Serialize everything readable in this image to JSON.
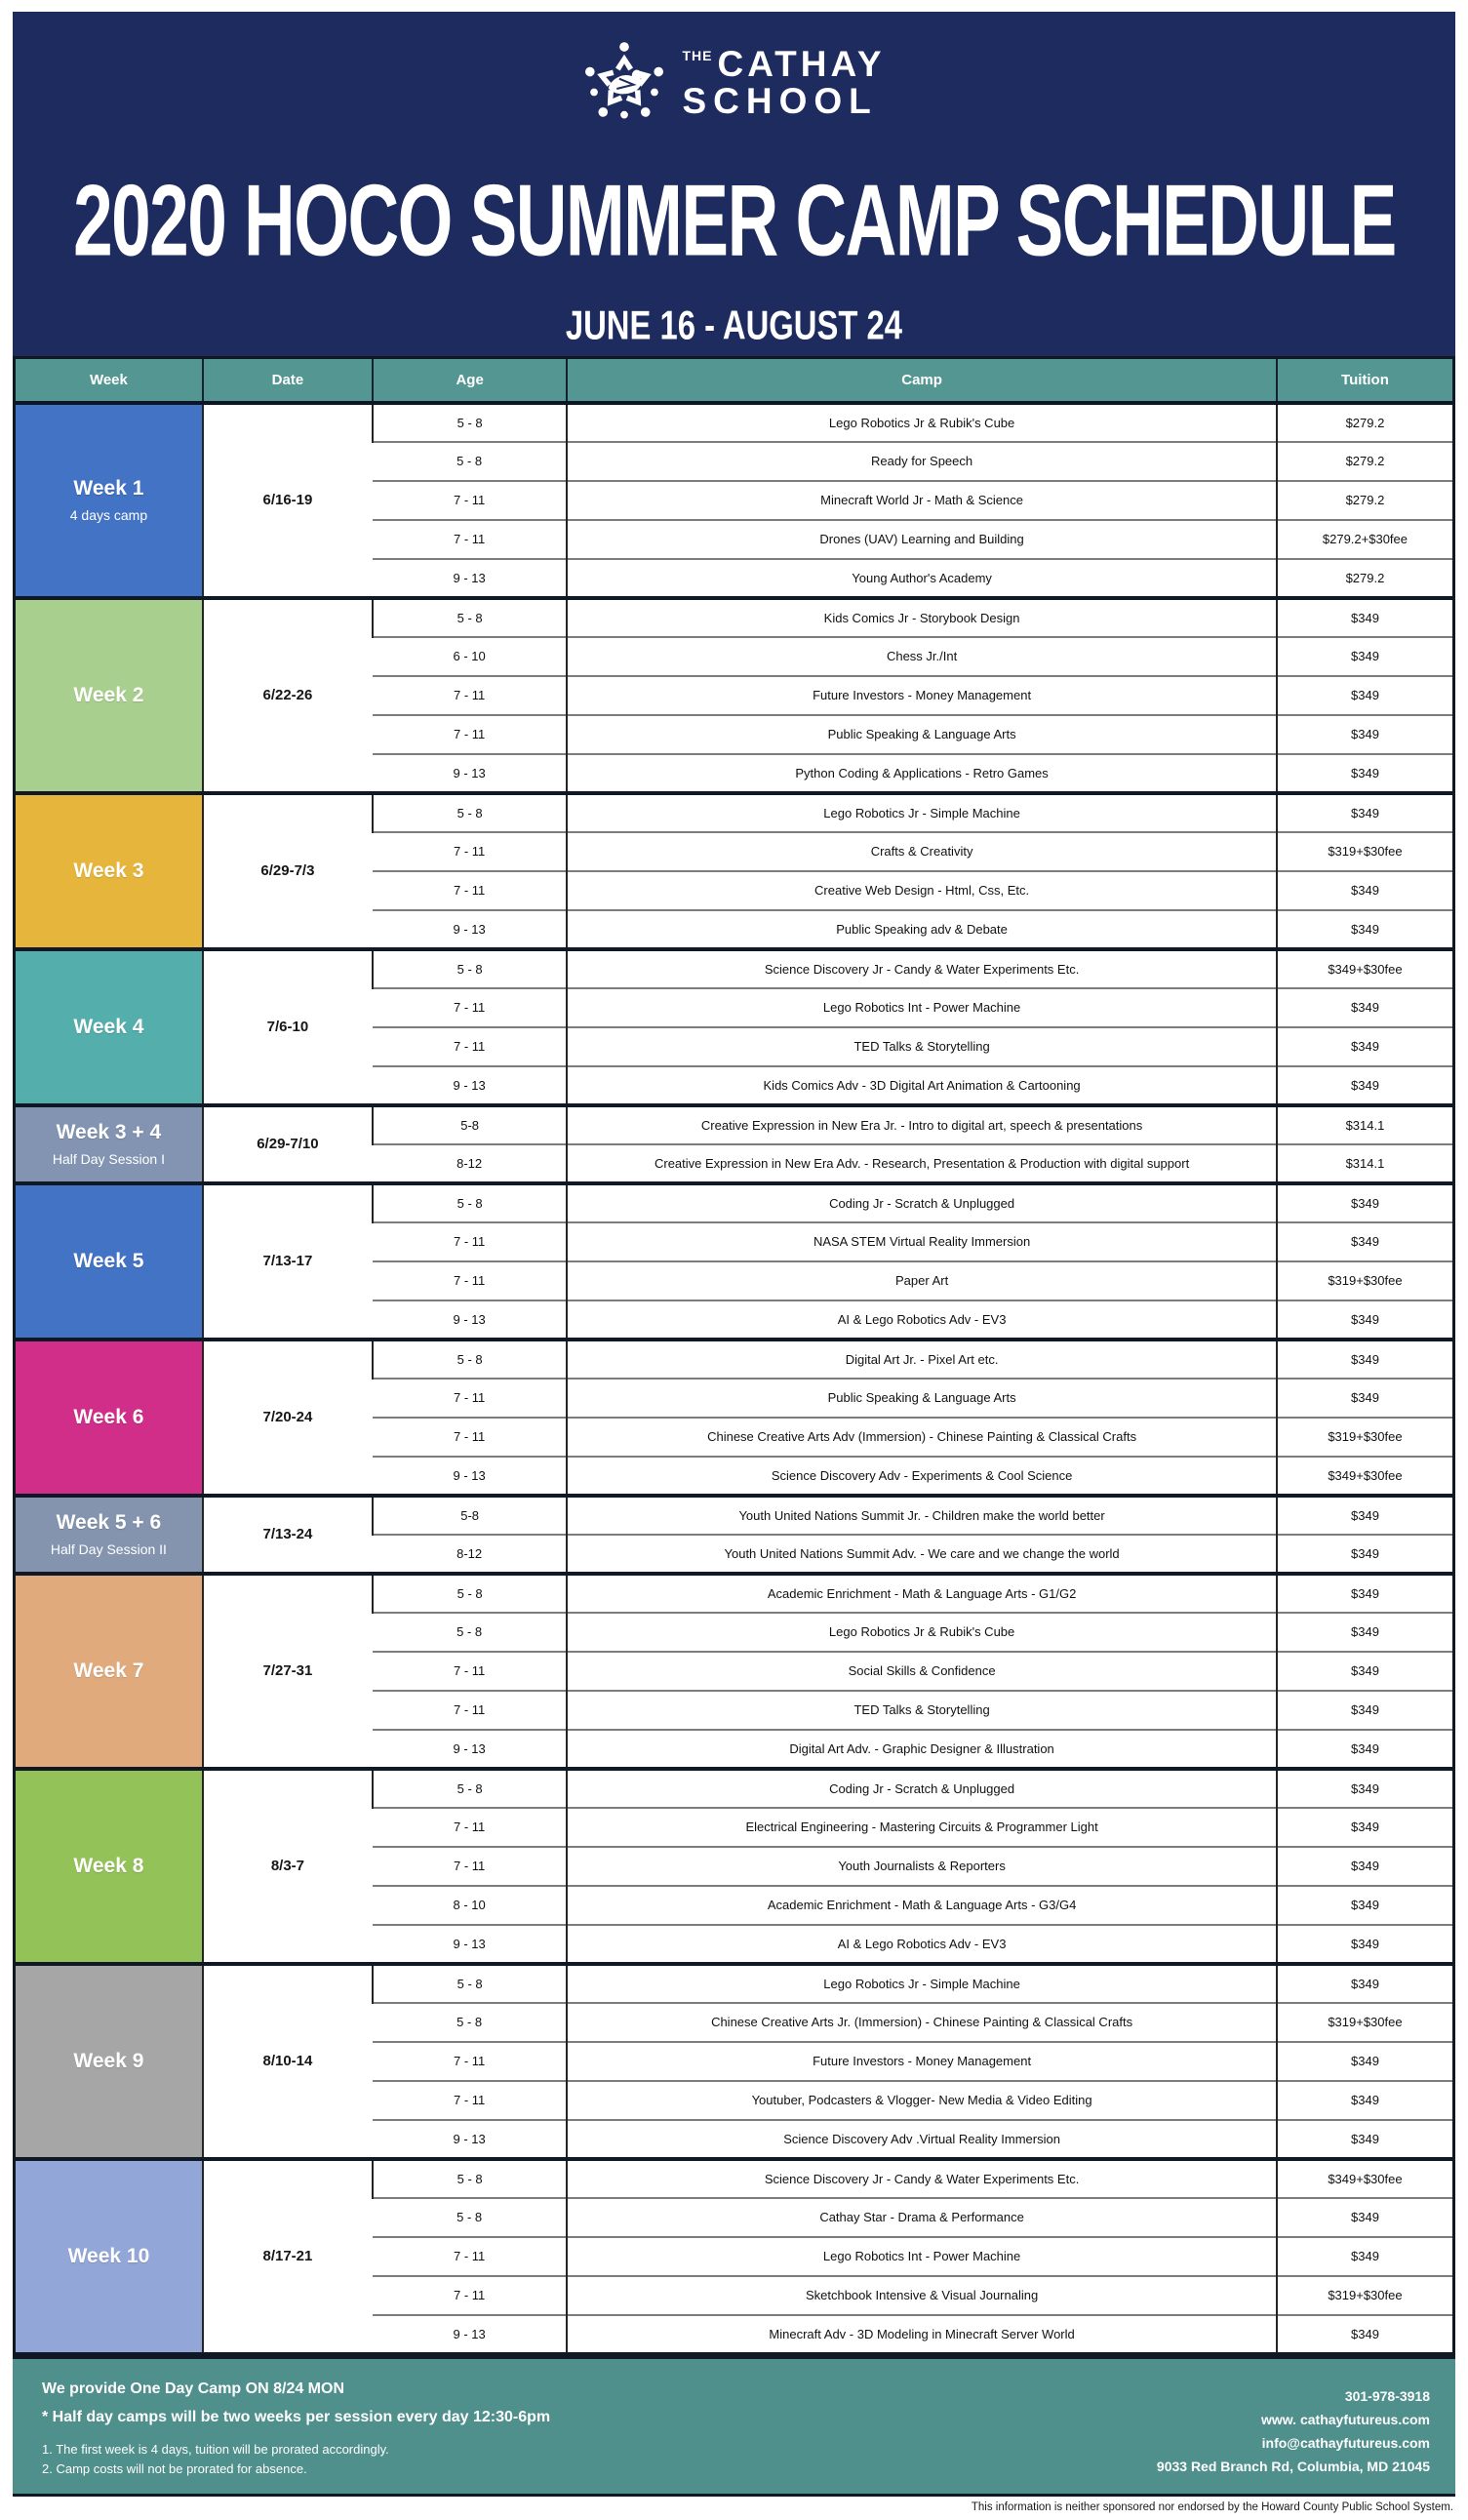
{
  "brand": {
    "the": "THE",
    "name_top": "CATHAY",
    "name_bottom": "SCHOOL"
  },
  "header": {
    "title": "2020 HOCO SUMMER CAMP SCHEDULE",
    "subtitle": "JUNE 16 - AUGUST 24"
  },
  "colors": {
    "hero_navy": "#1e2b5e",
    "header_teal": "#549692",
    "footer_teal": "#4f8f8c"
  },
  "table": {
    "columns": [
      "Week",
      "Date",
      "Age",
      "Camp",
      "Tuition"
    ],
    "groups": [
      {
        "week": "Week 1",
        "note": "4 days camp",
        "date": "6/16-19",
        "color": "#4273c4",
        "rows": [
          {
            "age": "5 - 8",
            "camp": "Lego Robotics Jr & Rubik's Cube",
            "tuition": "$279.2"
          },
          {
            "age": "5 - 8",
            "camp": "Ready for Speech",
            "tuition": "$279.2"
          },
          {
            "age": "7 - 11",
            "camp": "Minecraft World Jr - Math & Science",
            "tuition": "$279.2"
          },
          {
            "age": "7 - 11",
            "camp": "Drones (UAV) Learning and Building",
            "tuition": "$279.2+$30fee"
          },
          {
            "age": "9 - 13",
            "camp": "Young Author's Academy",
            "tuition": "$279.2"
          }
        ]
      },
      {
        "week": "Week 2",
        "date": "6/22-26",
        "color": "#a9cf8e",
        "rows": [
          {
            "age": "5 - 8",
            "camp": "Kids Comics Jr - Storybook Design",
            "tuition": "$349"
          },
          {
            "age": "6 - 10",
            "camp": "Chess Jr./Int",
            "tuition": "$349"
          },
          {
            "age": "7 - 11",
            "camp": "Future Investors - Money Management",
            "tuition": "$349"
          },
          {
            "age": "7 - 11",
            "camp": "Public Speaking & Language Arts",
            "tuition": "$349"
          },
          {
            "age": "9 - 13",
            "camp": "Python Coding & Applications - Retro Games",
            "tuition": "$349"
          }
        ]
      },
      {
        "week": "Week 3",
        "date": "6/29-7/3",
        "color": "#e6b63c",
        "rows": [
          {
            "age": "5 - 8",
            "camp": "Lego Robotics Jr - Simple Machine",
            "tuition": "$349"
          },
          {
            "age": "7 - 11",
            "camp": "Crafts & Creativity",
            "tuition": "$319+$30fee"
          },
          {
            "age": "7 - 11",
            "camp": "Creative Web Design - Html, Css, Etc.",
            "tuition": "$349"
          },
          {
            "age": "9 - 13",
            "camp": "Public Speaking adv & Debate",
            "tuition": "$349"
          }
        ]
      },
      {
        "week": "Week 4",
        "date": "7/6-10",
        "color": "#54aeab",
        "rows": [
          {
            "age": "5 - 8",
            "camp": "Science Discovery Jr - Candy & Water Experiments Etc.",
            "tuition": "$349+$30fee"
          },
          {
            "age": "7 - 11",
            "camp": "Lego Robotics Int - Power Machine",
            "tuition": "$349"
          },
          {
            "age": "7 - 11",
            "camp": "TED Talks & Storytelling",
            "tuition": "$349"
          },
          {
            "age": "9 - 13",
            "camp": "Kids Comics Adv - 3D Digital Art Animation & Cartooning",
            "tuition": "$349"
          }
        ]
      },
      {
        "week": "Week 3 + 4",
        "note": "Half Day Session I",
        "date": "6/29-7/10",
        "color": "#8294b1",
        "rows": [
          {
            "age": "5-8",
            "camp": "Creative Expression in New Era Jr. - Intro to digital art, speech & presentations",
            "tuition": "$314.1"
          },
          {
            "age": "8-12",
            "camp": "Creative Expression in New Era Adv. - Research, Presentation & Production with digital support",
            "tuition": "$314.1"
          }
        ]
      },
      {
        "week": "Week 5",
        "date": "7/13-17",
        "color": "#4273c4",
        "rows": [
          {
            "age": "5 - 8",
            "camp": "Coding Jr - Scratch & Unplugged",
            "tuition": "$349"
          },
          {
            "age": "7 - 11",
            "camp": "NASA STEM Virtual Reality Immersion",
            "tuition": "$349"
          },
          {
            "age": "7 - 11",
            "camp": "Paper Art",
            "tuition": "$319+$30fee"
          },
          {
            "age": "9 - 13",
            "camp": "AI & Lego Robotics Adv - EV3",
            "tuition": "$349"
          }
        ]
      },
      {
        "week": "Week 6",
        "date": "7/20-24",
        "color": "#d02e88",
        "rows": [
          {
            "age": "5 - 8",
            "camp": "Digital Art Jr. - Pixel Art etc.",
            "tuition": "$349"
          },
          {
            "age": "7 - 11",
            "camp": "Public Speaking & Language Arts",
            "tuition": "$349"
          },
          {
            "age": "7 - 11",
            "camp": "Chinese Creative Arts Adv (Immersion) - Chinese Painting & Classical Crafts",
            "tuition": "$319+$30fee"
          },
          {
            "age": "9 - 13",
            "camp": "Science Discovery Adv - Experiments & Cool Science",
            "tuition": "$349+$30fee"
          }
        ]
      },
      {
        "week": "Week 5 + 6",
        "note": "Half Day Session II",
        "date": "7/13-24",
        "color": "#8494ae",
        "rows": [
          {
            "age": "5-8",
            "camp": "Youth United Nations Summit Jr. - Children make the world better",
            "tuition": "$349"
          },
          {
            "age": "8-12",
            "camp": "Youth United Nations Summit Adv. - We care and we change the world",
            "tuition": "$349"
          }
        ]
      },
      {
        "week": "Week 7",
        "date": "7/27-31",
        "color": "#e0aa7d",
        "rows": [
          {
            "age": "5 - 8",
            "camp": "Academic Enrichment - Math & Language Arts - G1/G2",
            "tuition": "$349"
          },
          {
            "age": "5 - 8",
            "camp": "Lego Robotics Jr & Rubik's Cube",
            "tuition": "$349"
          },
          {
            "age": "7 - 11",
            "camp": "Social Skills & Confidence",
            "tuition": "$349"
          },
          {
            "age": "7 - 11",
            "camp": "TED Talks & Storytelling",
            "tuition": "$349"
          },
          {
            "age": "9 - 13",
            "camp": "Digital Art Adv. - Graphic Designer & Illustration",
            "tuition": "$349"
          }
        ]
      },
      {
        "week": "Week 8",
        "date": "8/3-7",
        "color": "#93c258",
        "rows": [
          {
            "age": "5 - 8",
            "camp": "Coding Jr - Scratch & Unplugged",
            "tuition": "$349"
          },
          {
            "age": "7 - 11",
            "camp": "Electrical Engineering - Mastering Circuits & Programmer Light",
            "tuition": "$349"
          },
          {
            "age": "7 - 11",
            "camp": "Youth Journalists & Reporters",
            "tuition": "$349"
          },
          {
            "age": "8 - 10",
            "camp": "Academic Enrichment - Math & Language Arts - G3/G4",
            "tuition": "$349"
          },
          {
            "age": "9 - 13",
            "camp": "AI & Lego Robotics Adv - EV3",
            "tuition": "$349"
          }
        ]
      },
      {
        "week": "Week 9",
        "date": "8/10-14",
        "color": "#a6a6a6",
        "rows": [
          {
            "age": "5 - 8",
            "camp": "Lego Robotics Jr - Simple Machine",
            "tuition": "$349"
          },
          {
            "age": "5 - 8",
            "camp": "Chinese Creative Arts Jr. (Immersion) - Chinese Painting & Classical Crafts",
            "tuition": "$319+$30fee"
          },
          {
            "age": "7 - 11",
            "camp": "Future Investors - Money Management",
            "tuition": "$349"
          },
          {
            "age": "7 - 11",
            "camp": "Youtuber, Podcasters & Vlogger- New Media & Video Editing",
            "tuition": "$349"
          },
          {
            "age": "9 - 13",
            "camp": "Science Discovery Adv .Virtual Reality Immersion",
            "tuition": "$349"
          }
        ]
      },
      {
        "week": "Week 10",
        "date": "8/17-21",
        "color": "#92a6d8",
        "rows": [
          {
            "age": "5 - 8",
            "camp": "Science Discovery Jr - Candy & Water Experiments Etc.",
            "tuition": "$349+$30fee"
          },
          {
            "age": "5 - 8",
            "camp": "Cathay Star - Drama & Performance",
            "tuition": "$349"
          },
          {
            "age": "7 - 11",
            "camp": "Lego Robotics Int - Power Machine",
            "tuition": "$349"
          },
          {
            "age": "7 - 11",
            "camp": "Sketchbook Intensive & Visual Journaling",
            "tuition": "$319+$30fee"
          },
          {
            "age": "9 - 13",
            "camp": "Minecraft Adv - 3D Modeling in Minecraft Server World",
            "tuition": "$349"
          }
        ]
      }
    ]
  },
  "footer": {
    "notes_bold": [
      "We provide One Day Camp ON 8/24 MON",
      "* Half day camps will be two weeks per session every day 12:30-6pm"
    ],
    "notes_small": [
      "1. The first week is 4 days, tuition will be prorated accordingly.",
      "2. Camp costs will not be prorated for absence."
    ],
    "contact": [
      "301-978-3918",
      "www. cathayfutureus.com",
      "info@cathayfutureus.com",
      "9033 Red Branch Rd, Columbia, MD 21045"
    ]
  },
  "disclaimer": "This information is neither sponsored nor endorsed by the Howard County Public School System."
}
